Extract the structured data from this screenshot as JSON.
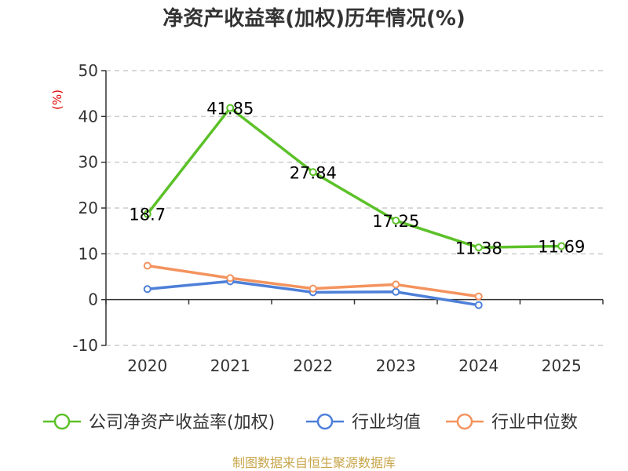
{
  "chart_data": {
    "type": "line",
    "title": "净资产收益率(加权)历年情况(%)",
    "ylabel": "(%)",
    "xlabel": "",
    "categories": [
      "2020",
      "2021",
      "2022",
      "2023",
      "2024",
      "2025"
    ],
    "ylim": [
      -10,
      50
    ],
    "yticks": [
      -10,
      0,
      10,
      20,
      30,
      40,
      50
    ],
    "grid": true,
    "legend_position": "bottom",
    "series": [
      {
        "name": "公司净资产收益率(加权)",
        "color": "#5cc129",
        "values": [
          18.7,
          41.85,
          27.84,
          17.25,
          11.38,
          11.69
        ],
        "labels": [
          "18.7",
          "41.85",
          "27.84",
          "17.25",
          "11.38",
          "11.69"
        ]
      },
      {
        "name": "行业均值",
        "color": "#4e7fd8",
        "values": [
          2.3,
          4.0,
          1.6,
          1.7,
          -1.2,
          null
        ]
      },
      {
        "name": "行业中位数",
        "color": "#f4935e",
        "values": [
          7.4,
          4.7,
          2.4,
          3.3,
          0.7,
          null
        ]
      }
    ]
  },
  "footer": {
    "source": "制图数据来自恒生聚源数据库",
    "source_color": "#c8a64a"
  },
  "colors": {
    "axis": "#333333",
    "grid": "#cccccc",
    "ylabel": "#e00000"
  }
}
